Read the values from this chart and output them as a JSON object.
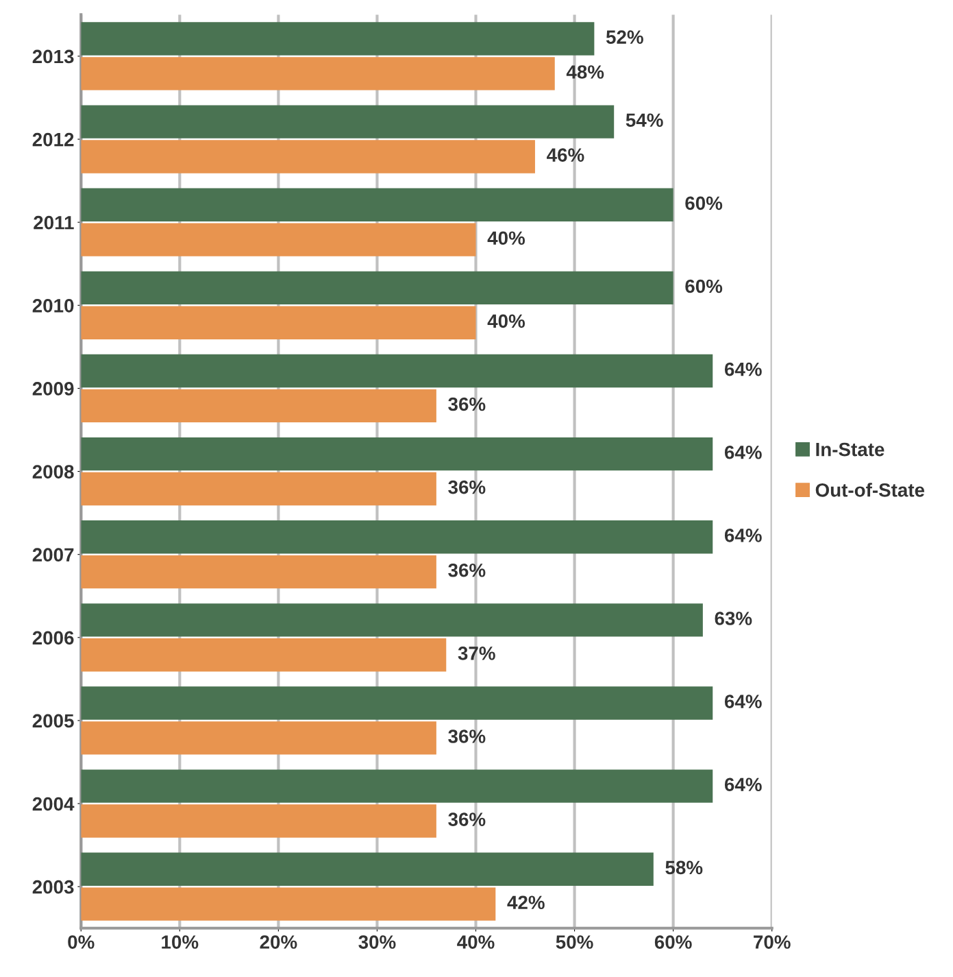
{
  "chart_data": {
    "type": "bar",
    "orientation": "horizontal",
    "categories": [
      "2013",
      "2012",
      "2011",
      "2010",
      "2009",
      "2008",
      "2007",
      "2006",
      "2005",
      "2004",
      "2003"
    ],
    "series": [
      {
        "name": "In-State",
        "color": "#4a7352",
        "values": [
          52,
          54,
          60,
          60,
          64,
          64,
          64,
          63,
          64,
          64,
          58
        ],
        "value_labels": [
          "52%",
          "54%",
          "60%",
          "60%",
          "64%",
          "64%",
          "64%",
          "63%",
          "64%",
          "64%",
          "58%"
        ]
      },
      {
        "name": "Out-of-State",
        "color": "#e8944f",
        "values": [
          48,
          46,
          40,
          40,
          36,
          36,
          36,
          37,
          36,
          36,
          42
        ],
        "value_labels": [
          "48%",
          "46%",
          "40%",
          "40%",
          "36%",
          "36%",
          "36%",
          "37%",
          "36%",
          "36%",
          "42%"
        ]
      }
    ],
    "xlim": [
      0,
      70
    ],
    "xticks": [
      {
        "value": 0,
        "label": "0%"
      },
      {
        "value": 10,
        "label": "10%"
      },
      {
        "value": 20,
        "label": "20%"
      },
      {
        "value": 30,
        "label": "30%"
      },
      {
        "value": 40,
        "label": "40%"
      },
      {
        "value": 50,
        "label": "50%"
      },
      {
        "value": 60,
        "label": "60%"
      },
      {
        "value": 70,
        "label": "70%"
      }
    ],
    "grid": "x",
    "legend": "right"
  }
}
